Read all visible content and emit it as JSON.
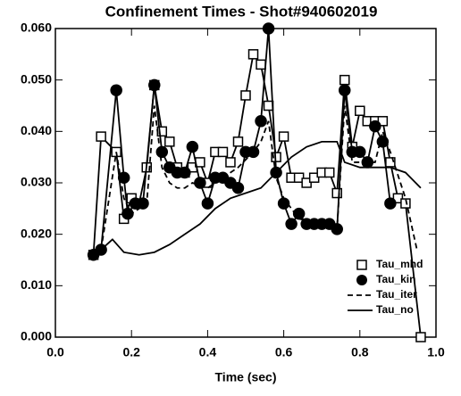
{
  "chart_data": {
    "type": "line",
    "title": "Confinement Times - Shot#940602019",
    "xlabel": "Time (sec)",
    "xlim": [
      0,
      1
    ],
    "ylim": [
      0,
      0.06
    ],
    "xticks": [
      {
        "value": 0,
        "label": "0.0"
      },
      0.2,
      0.4,
      0.6,
      0.8,
      {
        "value": 1,
        "label": "1.0"
      }
    ],
    "yticks": [
      {
        "value": 0,
        "label": "0.000"
      },
      {
        "value": 0.01,
        "label": "0.010"
      },
      {
        "value": 0.02,
        "label": "0.020"
      },
      {
        "value": 0.03,
        "label": "0.030"
      },
      {
        "value": 0.04,
        "label": "0.040"
      },
      {
        "value": 0.05,
        "label": "0.050"
      },
      {
        "value": 0.06,
        "label": "0.060"
      }
    ],
    "legend": "lower right",
    "series": [
      {
        "name": "Tau_mhd",
        "color": "#000000",
        "marker": "square",
        "dash": false,
        "x": [
          0.1,
          0.12,
          0.16,
          0.18,
          0.2,
          0.22,
          0.24,
          0.26,
          0.28,
          0.3,
          0.32,
          0.34,
          0.36,
          0.38,
          0.4,
          0.42,
          0.44,
          0.46,
          0.48,
          0.5,
          0.52,
          0.54,
          0.56,
          0.58,
          0.6,
          0.62,
          0.64,
          0.66,
          0.68,
          0.7,
          0.72,
          0.74,
          0.76,
          0.78,
          0.8,
          0.82,
          0.84,
          0.86,
          0.88,
          0.9,
          0.92,
          0.96
        ],
        "values": [
          0.016,
          0.039,
          0.036,
          0.023,
          0.027,
          0.026,
          0.033,
          0.049,
          0.04,
          0.038,
          0.033,
          0.032,
          0.033,
          0.034,
          0.03,
          0.036,
          0.036,
          0.034,
          0.038,
          0.047,
          0.055,
          0.053,
          0.045,
          0.035,
          0.039,
          0.031,
          0.031,
          0.03,
          0.031,
          0.032,
          0.032,
          0.028,
          0.05,
          0.037,
          0.044,
          0.042,
          0.042,
          0.042,
          0.034,
          0.027,
          0.026,
          0
        ]
      },
      {
        "name": "Tau_kin",
        "color": "#000000",
        "marker": "circle",
        "dash": false,
        "x": [
          0.1,
          0.12,
          0.16,
          0.18,
          0.19,
          0.21,
          0.23,
          0.26,
          0.28,
          0.3,
          0.32,
          0.34,
          0.36,
          0.38,
          0.4,
          0.42,
          0.44,
          0.46,
          0.48,
          0.5,
          0.52,
          0.54,
          0.56,
          0.58,
          0.6,
          0.62,
          0.64,
          0.66,
          0.68,
          0.7,
          0.72,
          0.74,
          0.76,
          0.78,
          0.8,
          0.82,
          0.84,
          0.86,
          0.88
        ],
        "values": [
          0.016,
          0.017,
          0.048,
          0.031,
          0.024,
          0.026,
          0.026,
          0.049,
          0.036,
          0.033,
          0.032,
          0.032,
          0.037,
          0.03,
          0.026,
          0.031,
          0.031,
          0.03,
          0.029,
          0.036,
          0.036,
          0.042,
          0.06,
          0.032,
          0.026,
          0.022,
          0.024,
          0.022,
          0.022,
          0.022,
          0.022,
          0.021,
          0.048,
          0.036,
          0.036,
          0.034,
          0.041,
          0.038,
          0.026
        ]
      },
      {
        "name": "Tau_iter",
        "color": "#000000",
        "marker": "none",
        "dash": true,
        "x": [
          0.1,
          0.12,
          0.16,
          0.18,
          0.2,
          0.22,
          0.24,
          0.26,
          0.28,
          0.3,
          0.32,
          0.34,
          0.36,
          0.4,
          0.44,
          0.48,
          0.52,
          0.54,
          0.56,
          0.58,
          0.6,
          0.64,
          0.7,
          0.74,
          0.76,
          0.78,
          0.8,
          0.84,
          0.86,
          0.88,
          0.92,
          0.95
        ],
        "values": [
          0.016,
          0.017,
          0.036,
          0.027,
          0.024,
          0.025,
          0.026,
          0.045,
          0.033,
          0.03,
          0.029,
          0.029,
          0.03,
          0.029,
          0.031,
          0.033,
          0.036,
          0.038,
          0.042,
          0.031,
          0.027,
          0.023,
          0.022,
          0.021,
          0.045,
          0.034,
          0.034,
          0.034,
          0.04,
          0.036,
          0.027,
          0.017
        ]
      },
      {
        "name": "Tau_no",
        "color": "#000000",
        "marker": "none",
        "dash": false,
        "x": [
          0.1,
          0.12,
          0.15,
          0.18,
          0.22,
          0.26,
          0.3,
          0.34,
          0.38,
          0.42,
          0.46,
          0.5,
          0.54,
          0.58,
          0.62,
          0.66,
          0.7,
          0.74,
          0.76,
          0.8,
          0.84,
          0.88,
          0.92,
          0.96
        ],
        "values": [
          0.017,
          0.017,
          0.019,
          0.0165,
          0.016,
          0.0165,
          0.018,
          0.02,
          0.022,
          0.025,
          0.027,
          0.028,
          0.029,
          0.032,
          0.035,
          0.037,
          0.038,
          0.038,
          0.034,
          0.033,
          0.033,
          0.033,
          0.032,
          0.029
        ]
      }
    ]
  }
}
